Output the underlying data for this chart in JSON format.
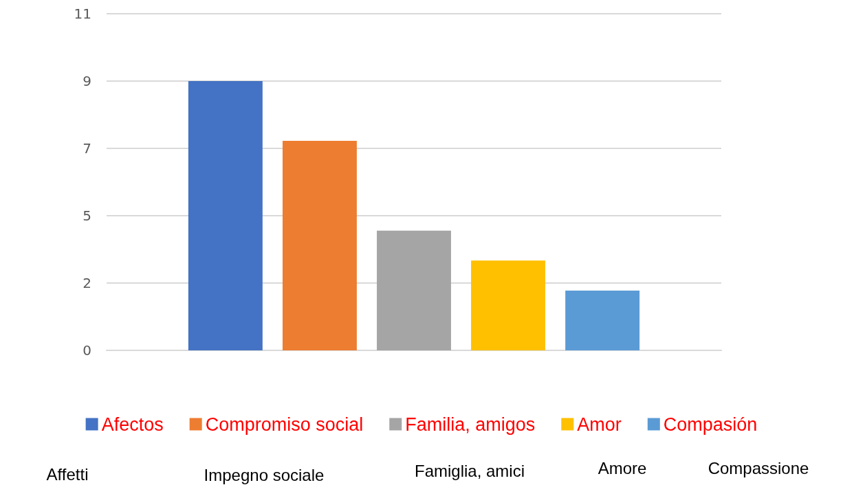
{
  "chart_data": {
    "type": "bar",
    "categories": [
      null
    ],
    "series": [
      {
        "name": "Afectos",
        "color": "#4472c4",
        "values": [
          9
        ]
      },
      {
        "name": "Compromiso social",
        "color": "#ed7d31",
        "values": [
          7
        ]
      },
      {
        "name": "Familia, amigos",
        "color": "#a5a5a5",
        "values": [
          4
        ]
      },
      {
        "name": "Amor",
        "color": "#ffc000",
        "values": [
          3
        ]
      },
      {
        "name": "Compasión",
        "color": "#5b9bd5",
        "values": [
          2
        ]
      }
    ],
    "ylim": [
      0,
      11.25
    ],
    "yticks": [
      0,
      {
        "value": 2.25,
        "label": "2"
      },
      {
        "value": 4.5,
        "label": "5"
      },
      {
        "value": 6.75,
        "label": "7"
      },
      9,
      {
        "value": 11.25,
        "label": "11"
      }
    ],
    "grid": "y",
    "legend": "bottom",
    "annotations": [
      "Affetti",
      "Impegno sociale",
      "Famiglia, amici",
      "Amore",
      "Compassione"
    ]
  }
}
